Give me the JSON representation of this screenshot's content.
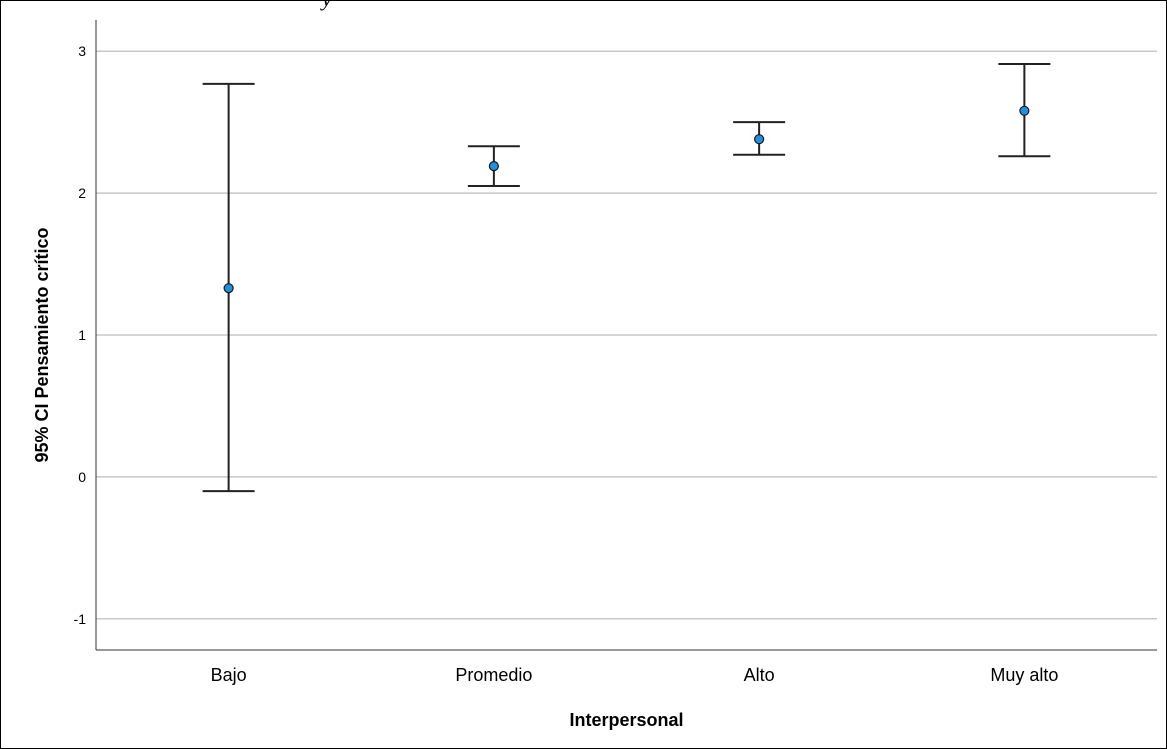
{
  "header_fragment": "y",
  "chart_data": {
    "type": "errorbar",
    "title": "",
    "xlabel": "Interpersonal",
    "ylabel": "95% CI Pensamiento crítico",
    "categories": [
      "Bajo",
      "Promedio",
      "Alto",
      "Muy alto"
    ],
    "means": [
      1.33,
      2.19,
      2.38,
      2.58
    ],
    "ci_lower": [
      -0.1,
      2.05,
      2.27,
      2.26
    ],
    "ci_upper": [
      2.77,
      2.33,
      2.5,
      2.91
    ],
    "yticks": [
      -1,
      0,
      1,
      2,
      3
    ],
    "ylim": [
      -1.22,
      3.22
    ],
    "grid": "horizontal",
    "colors": {
      "marker_fill": "#1f8fe0",
      "marker_stroke": "#1a1a1a",
      "errorbar": "#222222",
      "grid": "#c8c8c8",
      "axis": "#333333"
    }
  }
}
